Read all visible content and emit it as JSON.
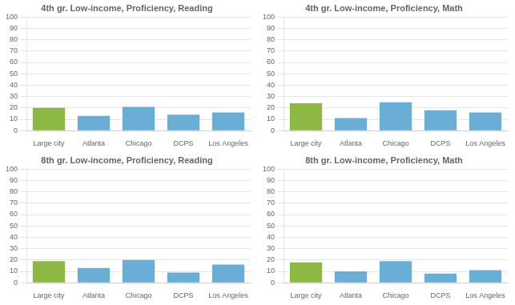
{
  "chart_data": [
    {
      "type": "bar",
      "title": "4th gr. Low-income, Proficiency, Reading",
      "categories": [
        "Large city",
        "Atlanta",
        "Chicago",
        "DCPS",
        "Los Angeles"
      ],
      "values": [
        20,
        13,
        21,
        14,
        16
      ],
      "colors": [
        "#8db843",
        "#6aaed6",
        "#6aaed6",
        "#6aaed6",
        "#6aaed6"
      ],
      "ylim": [
        0,
        100
      ],
      "yticks": [
        0,
        10,
        20,
        30,
        40,
        50,
        60,
        70,
        80,
        90,
        100
      ],
      "grid": true
    },
    {
      "type": "bar",
      "title": "4th gr. Low-income, Proficiency, Math",
      "categories": [
        "Large city",
        "Atlanta",
        "Chicago",
        "DCPS",
        "Los Angeles"
      ],
      "values": [
        24,
        11,
        25,
        18,
        16
      ],
      "colors": [
        "#8db843",
        "#6aaed6",
        "#6aaed6",
        "#6aaed6",
        "#6aaed6"
      ],
      "ylim": [
        0,
        100
      ],
      "yticks": [
        0,
        10,
        20,
        30,
        40,
        50,
        60,
        70,
        80,
        90,
        100
      ],
      "grid": true
    },
    {
      "type": "bar",
      "title": "8th gr. Low-income, Proficiency, Reading",
      "categories": [
        "Large city",
        "Atlanta",
        "Chicago",
        "DCPS",
        "Los Angeles"
      ],
      "values": [
        19,
        13,
        20,
        9,
        16
      ],
      "colors": [
        "#8db843",
        "#6aaed6",
        "#6aaed6",
        "#6aaed6",
        "#6aaed6"
      ],
      "ylim": [
        0,
        100
      ],
      "yticks": [
        0,
        10,
        20,
        30,
        40,
        50,
        60,
        70,
        80,
        90,
        100
      ],
      "grid": true
    },
    {
      "type": "bar",
      "title": "8th gr. Low-income, Proficiency, Math",
      "categories": [
        "Large city",
        "Atlanta",
        "Chicago",
        "DCPS",
        "Los Angeles"
      ],
      "values": [
        18,
        10,
        19,
        8,
        11
      ],
      "colors": [
        "#8db843",
        "#6aaed6",
        "#6aaed6",
        "#6aaed6",
        "#6aaed6"
      ],
      "ylim": [
        0,
        100
      ],
      "yticks": [
        0,
        10,
        20,
        30,
        40,
        50,
        60,
        70,
        80,
        90,
        100
      ],
      "grid": true
    }
  ]
}
